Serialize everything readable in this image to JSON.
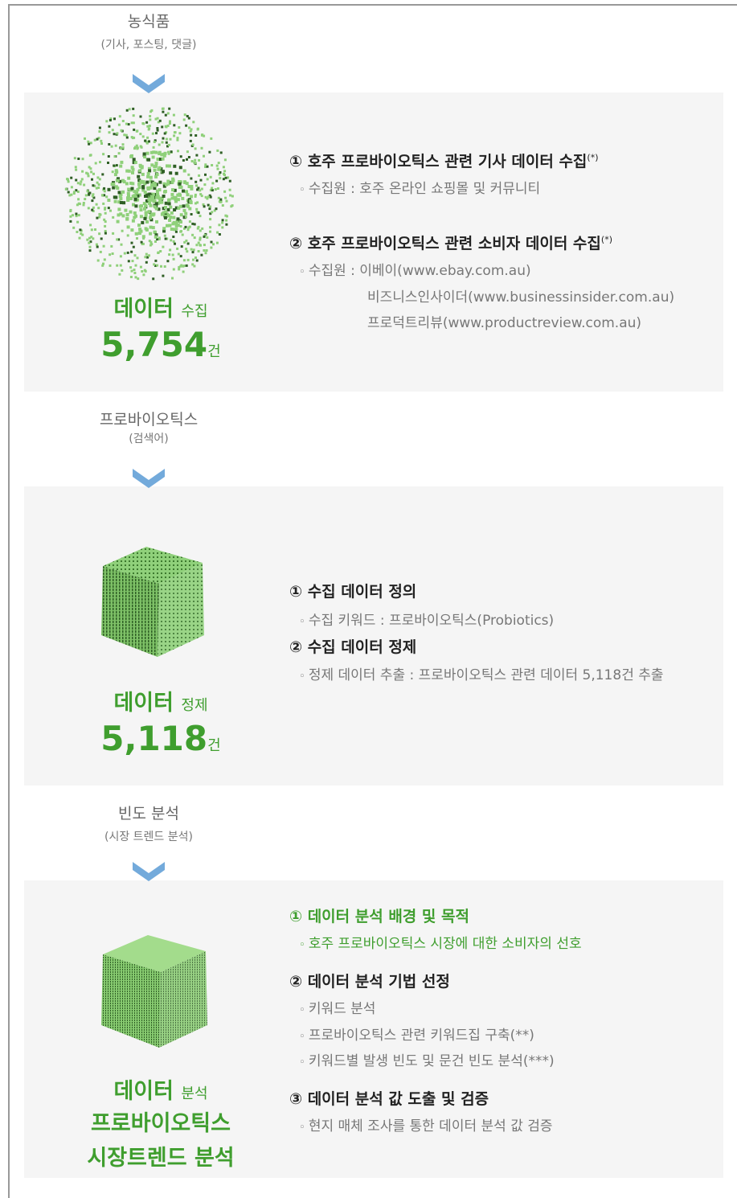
{
  "stages": [
    {
      "label": "농식품",
      "sublabel": "(기사, 포스팅, 댓글)"
    },
    {
      "label": "프로바이오틱스",
      "sublabel": "(검색어)"
    },
    {
      "label": "빈도 분석",
      "sublabel": "(시장 트렌드 분석)"
    }
  ],
  "sections": [
    {
      "title": "데이터",
      "title_sub": "수집",
      "count": "5,754",
      "unit": "건",
      "items": [
        {
          "heading": "① 호주 프로바이오틱스 관련 기사 데이터 수집",
          "note": "(*)",
          "bullets": [
            "수집원 : 호주 온라인 쇼핑몰 및 커뮤니티"
          ]
        },
        {
          "heading": "② 호주 프로바이오틱스 관련 소비자 데이터 수집",
          "note": "(*)",
          "bullets": [
            "수집원 : 이베이(www.ebay.com.au)",
            "비즈니스인사이더(www.businessinsider.com.au)",
            "프로덕트리뷰(www.productreview.com.au)"
          ]
        }
      ]
    },
    {
      "title": "데이터",
      "title_sub": "정제",
      "count": "5,118",
      "unit": "건",
      "items": [
        {
          "heading": "① 수집 데이터 정의",
          "bullets": [
            "수집 키워드 : 프로바이오틱스(Probiotics)"
          ]
        },
        {
          "heading": "② 수집 데이터 정제",
          "bullets": [
            "정제 데이터 추출 :  프로바이오틱스 관련 데이터 5,118건 추출"
          ]
        }
      ]
    },
    {
      "title": "데이터",
      "title_sub": "분석",
      "result_lines": [
        "프로바이오틱스",
        "시장트렌드 분석"
      ],
      "items": [
        {
          "heading": "① 데이터 분석 배경 및 목적",
          "bullets": [
            "호주 프로바이오틱스 시장에 대한 소비자의 선호"
          ]
        },
        {
          "heading": "② 데이터 분석 기법 선정",
          "bullets": [
            "키워드 분석",
            "프로바이오틱스 관련 키워드집 구축(**)",
            "키워드별 발생 빈도 및 문건 빈도 분석(***)"
          ]
        },
        {
          "heading": "③ 데이터 분석 값 도출 및 검증",
          "bullets": [
            "현지 매체 조사를 통한 데이터 분석 값 검증"
          ]
        }
      ]
    }
  ]
}
